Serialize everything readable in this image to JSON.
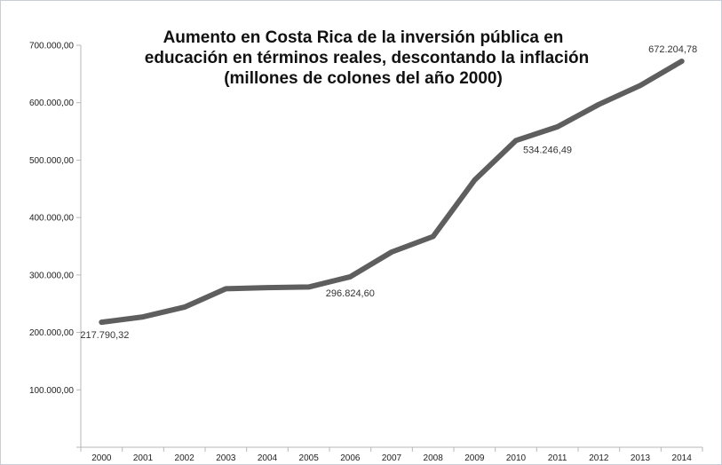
{
  "chart_data": {
    "type": "line",
    "title_lines": [
      "Aumento en Costa Rica de la inversión pública en",
      "educación en términos reales, descontando la inflación",
      "(millones de colones del año 2000)"
    ],
    "xlabel": "",
    "ylabel": "",
    "ylim": [
      0,
      700000
    ],
    "y_ticks": [
      100000,
      200000,
      300000,
      400000,
      500000,
      600000,
      700000
    ],
    "y_tick_labels": [
      "100.000,00",
      "200.000,00",
      "300.000,00",
      "400.000,00",
      "500.000,00",
      "600.000,00",
      "700.000,00"
    ],
    "categories": [
      "2000",
      "2001",
      "2002",
      "2003",
      "2004",
      "2005",
      "2006",
      "2007",
      "2008",
      "2009",
      "2010",
      "2011",
      "2012",
      "2013",
      "2014"
    ],
    "series": [
      {
        "values": [
          217790.32,
          227000,
          244000,
          276000,
          278000,
          279000,
          296824.6,
          340000,
          367000,
          465000,
          534246.49,
          558000,
          597000,
          630000,
          672204.78
        ],
        "color": "#5e5e5e"
      }
    ],
    "data_labels": [
      {
        "index": 0,
        "text": "217.790,32"
      },
      {
        "index": 6,
        "text": "296.824,60"
      },
      {
        "index": 10,
        "text": "534.246,49"
      },
      {
        "index": 14,
        "text": "672.204,78"
      }
    ],
    "grid": false,
    "legend": "none"
  }
}
